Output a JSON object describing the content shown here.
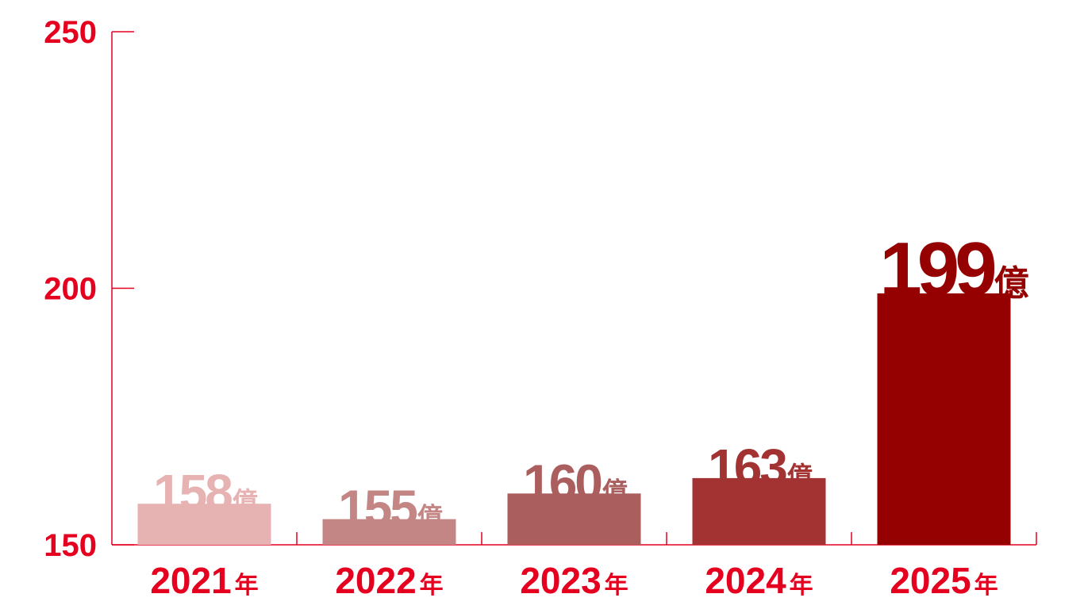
{
  "chart_data": {
    "type": "bar",
    "categories": [
      "2021",
      "2022",
      "2023",
      "2024",
      "2025"
    ],
    "category_suffix": "年",
    "values": [
      158,
      155,
      160,
      163,
      199
    ],
    "data_labels": [
      "158",
      "155",
      "160",
      "163",
      "199"
    ],
    "value_suffix": "億",
    "ylim": [
      150,
      250
    ],
    "yticks": [
      "150",
      "200",
      "250"
    ],
    "grid": false,
    "colors": {
      "axis": "#e60020",
      "tick_text": "#e60020",
      "bars": [
        "#e6b2b2",
        "#c48585",
        "#aa5e5e",
        "#a33333",
        "#950000"
      ]
    }
  }
}
